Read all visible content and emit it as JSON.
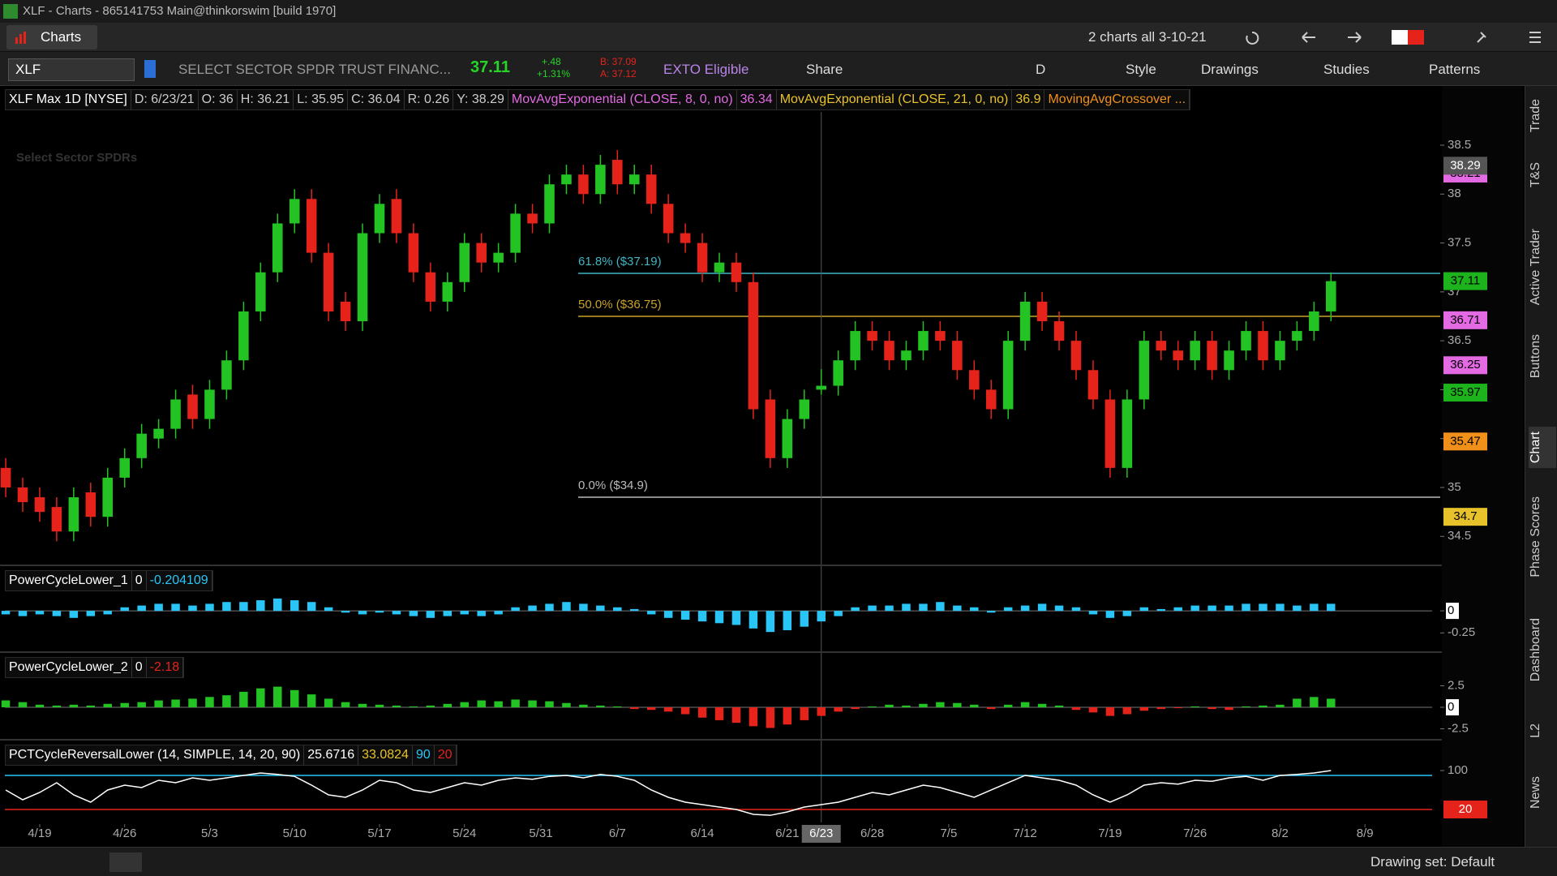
{
  "window": {
    "title": "XLF - Charts - 865141753 Main@thinkorswim [build 1970]"
  },
  "toolbar": {
    "tab": "Charts",
    "layout": "2 charts all 3-10-21",
    "symbol": "XLF",
    "description": "SELECT SECTOR SPDR TRUST FINANC...",
    "last": "37.11",
    "change": "+.48",
    "change_pct": "+1.31%",
    "bid": "B: 37.09",
    "ask": "A: 37.12",
    "badge": "EXTO Eligible",
    "share": "Share",
    "aggregation": "D",
    "style": "Style",
    "drawings": "Drawings",
    "studies": "Studies",
    "patterns": "Patterns"
  },
  "sidebar": {
    "tabs": [
      "Trade",
      "T&S",
      "Active Trader",
      "Buttons",
      "Chart",
      "Phase Scores",
      "Dashboard",
      "L2",
      "News"
    ],
    "active": "Chart"
  },
  "status": {
    "drawing_set": "Drawing set: Default"
  },
  "chart_data": [
    {
      "type": "candlestick",
      "header": [
        {
          "text": "XLF Max 1D [NYSE]",
          "color": "#ffffff"
        },
        {
          "text": "D: 6/23/21",
          "color": "#cccccc"
        },
        {
          "text": "O: 36",
          "color": "#cccccc"
        },
        {
          "text": "H: 36.21",
          "color": "#cccccc"
        },
        {
          "text": "L: 35.95",
          "color": "#cccccc"
        },
        {
          "text": "C: 36.04",
          "color": "#cccccc"
        },
        {
          "text": "R: 0.26",
          "color": "#cccccc"
        },
        {
          "text": "Y: 38.29",
          "color": "#cccccc"
        },
        {
          "text": "MovAvgExponential (CLOSE, 8, 0, no)",
          "color": "#e36ae3"
        },
        {
          "text": "36.34",
          "color": "#e36ae3"
        },
        {
          "text": "MovAvgExponential (CLOSE, 21, 0, no)",
          "color": "#e8c22a"
        },
        {
          "text": "36.9",
          "color": "#e8c22a"
        },
        {
          "text": "MovingAvgCrossover ...",
          "color": "#f0901a"
        }
      ],
      "watermark": "Select Sector SPDRs",
      "open": [
        35.2,
        35.0,
        34.9,
        34.8,
        34.55,
        34.95,
        34.7,
        35.1,
        35.3,
        35.5,
        35.6,
        35.95,
        35.7,
        36.0,
        36.3,
        36.8,
        37.2,
        37.7,
        37.95,
        37.4,
        36.9,
        36.7,
        37.6,
        37.95,
        37.6,
        37.2,
        36.9,
        37.1,
        37.5,
        37.3,
        37.4,
        37.8,
        37.7,
        38.1,
        38.2,
        38.0,
        38.35,
        38.1,
        38.2,
        37.9,
        37.6,
        37.5,
        37.2,
        37.3,
        37.1,
        35.9,
        35.3,
        35.7,
        36,
        36.04,
        36.3,
        36.6,
        36.5,
        36.3,
        36.4,
        36.6,
        36.5,
        36.2,
        36.0,
        35.8,
        36.5,
        36.9,
        36.7,
        36.5,
        36.2,
        35.9,
        35.2,
        35.9,
        36.5,
        36.4,
        36.3,
        36.5,
        36.2,
        36.4,
        36.6,
        36.3,
        36.5,
        36.6,
        36.8
      ],
      "high": [
        35.3,
        35.1,
        35.0,
        34.9,
        35.0,
        35.05,
        35.2,
        35.4,
        35.65,
        35.7,
        36.0,
        36.05,
        36.1,
        36.4,
        36.9,
        37.3,
        37.8,
        38.05,
        38.05,
        37.5,
        37.0,
        37.7,
        38.0,
        38.05,
        37.7,
        37.3,
        37.2,
        37.6,
        37.6,
        37.5,
        37.9,
        37.9,
        38.2,
        38.3,
        38.3,
        38.4,
        38.45,
        38.3,
        38.3,
        38.0,
        37.7,
        37.6,
        37.4,
        37.4,
        37.2,
        36.0,
        35.8,
        36.0,
        36.21,
        36.4,
        36.7,
        36.7,
        36.6,
        36.5,
        36.7,
        36.7,
        36.6,
        36.3,
        36.1,
        36.6,
        37.0,
        37.0,
        36.8,
        36.6,
        36.3,
        36.0,
        36.0,
        36.6,
        36.6,
        36.5,
        36.6,
        36.6,
        36.5,
        36.7,
        36.7,
        36.6,
        36.7,
        36.9,
        37.2
      ],
      "low": [
        34.9,
        34.75,
        34.65,
        34.45,
        34.45,
        34.6,
        34.6,
        35.0,
        35.2,
        35.4,
        35.5,
        35.6,
        35.6,
        35.9,
        36.2,
        36.7,
        37.1,
        37.6,
        37.3,
        36.7,
        36.6,
        36.6,
        37.5,
        37.5,
        37.1,
        36.8,
        36.8,
        37.0,
        37.2,
        37.2,
        37.3,
        37.6,
        37.6,
        38.0,
        37.9,
        37.9,
        38.0,
        38.0,
        37.8,
        37.5,
        37.4,
        37.1,
        37.1,
        37.0,
        35.7,
        35.2,
        35.2,
        35.6,
        35.95,
        35.94,
        36.2,
        36.4,
        36.2,
        36.2,
        36.3,
        36.4,
        36.1,
        35.9,
        35.7,
        35.7,
        36.4,
        36.6,
        36.4,
        36.1,
        35.8,
        35.1,
        35.1,
        35.8,
        36.3,
        36.2,
        36.2,
        36.1,
        36.1,
        36.3,
        36.2,
        36.2,
        36.4,
        36.5,
        36.7
      ],
      "close": [
        35.0,
        34.85,
        34.75,
        34.55,
        34.9,
        34.7,
        35.1,
        35.3,
        35.55,
        35.6,
        35.9,
        35.7,
        36.0,
        36.3,
        36.8,
        37.2,
        37.7,
        37.95,
        37.4,
        36.8,
        36.7,
        37.6,
        37.9,
        37.6,
        37.2,
        36.9,
        37.1,
        37.5,
        37.3,
        37.4,
        37.8,
        37.7,
        38.1,
        38.2,
        38.0,
        38.3,
        38.1,
        38.2,
        37.9,
        37.6,
        37.5,
        37.2,
        37.3,
        37.1,
        35.8,
        35.3,
        35.7,
        35.9,
        36.04,
        36.3,
        36.6,
        36.5,
        36.3,
        36.4,
        36.6,
        36.5,
        36.2,
        36.0,
        35.8,
        36.5,
        36.9,
        36.7,
        36.5,
        36.2,
        35.9,
        35.2,
        35.9,
        36.5,
        36.4,
        36.3,
        36.5,
        36.2,
        36.4,
        36.6,
        36.3,
        36.5,
        36.6,
        36.8,
        37.11
      ],
      "up_color": "#22c322",
      "down_color": "#e5231b",
      "xlim": [
        -0.05,
        84.43
      ],
      "xticks": [
        {
          "value": 2,
          "label": "4/19"
        },
        {
          "value": 7,
          "label": "4/26"
        },
        {
          "value": 12,
          "label": "5/3"
        },
        {
          "value": 17,
          "label": "5/10"
        },
        {
          "value": 22,
          "label": "5/17"
        },
        {
          "value": 27,
          "label": "5/24"
        },
        {
          "value": 31.5,
          "label": "5/31"
        },
        {
          "value": 36,
          "label": "6/7"
        },
        {
          "value": 41,
          "label": "6/14"
        },
        {
          "value": 46,
          "label": "6/21"
        },
        {
          "value": 51,
          "label": "6/28"
        },
        {
          "value": 55.5,
          "label": "7/5"
        },
        {
          "value": 60,
          "label": "7/12"
        },
        {
          "value": 65,
          "label": "7/19"
        },
        {
          "value": 70,
          "label": "7/26"
        },
        {
          "value": 75,
          "label": "8/2"
        },
        {
          "value": 80,
          "label": "8/9"
        }
      ],
      "cursor": {
        "value": 48,
        "label": "6/23"
      },
      "ylim": [
        34.27,
        38.84
      ],
      "yticks": [
        34.5,
        35,
        35.5,
        36,
        36.5,
        37,
        37.5,
        38,
        38.5
      ],
      "fib_levels": [
        {
          "label": "61.8% ($37.19)",
          "value": 37.19,
          "color": "#3fb6c4"
        },
        {
          "label": "50.0% ($36.75)",
          "value": 36.75,
          "color": "#c9a227"
        },
        {
          "label": "0.0% ($34.9)",
          "value": 34.9,
          "color": "#bbbbbb"
        }
      ],
      "price_labels": [
        {
          "value": 38.21,
          "color": "#e36ae3"
        },
        {
          "value": 38.29,
          "color": "#555555",
          "text_color": "#ffffff"
        },
        {
          "value": 37.11,
          "color": "#1db31d"
        },
        {
          "value": 36.71,
          "color": "#e36ae3"
        },
        {
          "value": 36.25,
          "color": "#e36ae3"
        },
        {
          "value": 35.97,
          "color": "#1db31d"
        },
        {
          "value": 35.47,
          "color": "#f0901a"
        },
        {
          "value": 34.7,
          "color": "#e8c22a"
        }
      ]
    },
    {
      "type": "histogram",
      "header": [
        {
          "text": "PowerCycleLower_1",
          "color": "#ffffff"
        },
        {
          "text": "0",
          "color": "#ffffff"
        },
        {
          "text": "-0.204109",
          "color": "#29c5f6"
        }
      ],
      "values": [
        -0.04,
        -0.06,
        -0.04,
        -0.06,
        -0.08,
        -0.06,
        -0.04,
        0.04,
        0.06,
        0.08,
        0.08,
        0.06,
        0.08,
        0.1,
        0.1,
        0.12,
        0.14,
        0.12,
        0.1,
        0.04,
        -0.02,
        -0.04,
        -0.02,
        -0.04,
        -0.06,
        -0.08,
        -0.06,
        -0.04,
        -0.06,
        -0.04,
        0.04,
        0.06,
        0.08,
        0.1,
        0.08,
        0.06,
        0.04,
        0.02,
        -0.04,
        -0.08,
        -0.1,
        -0.12,
        -0.14,
        -0.16,
        -0.2,
        -0.24,
        -0.22,
        -0.18,
        -0.12,
        -0.06,
        0.04,
        0.06,
        0.06,
        0.08,
        0.08,
        0.1,
        0.06,
        0.04,
        -0.02,
        0.04,
        0.06,
        0.08,
        0.06,
        0.04,
        -0.04,
        -0.08,
        -0.06,
        0.04,
        0.02,
        0.04,
        0.06,
        0.06,
        0.06,
        0.08,
        0.08,
        0.08,
        0.06,
        0.08,
        0.08
      ],
      "up_color": "#29c5f6",
      "down_color": "#29c5f6",
      "ylim": [
        -0.45,
        0.47
      ],
      "yticks": [
        0,
        -0.25
      ],
      "zero_line": true
    },
    {
      "type": "histogram",
      "header": [
        {
          "text": "PowerCycleLower_2",
          "color": "#ffffff"
        },
        {
          "text": "0",
          "color": "#ffffff"
        },
        {
          "text": "-2.18",
          "color": "#e5231b"
        }
      ],
      "values": [
        0.8,
        0.6,
        0.3,
        0.2,
        0.3,
        0.2,
        0.4,
        0.5,
        0.6,
        0.8,
        0.9,
        1.0,
        1.2,
        1.4,
        1.8,
        2.2,
        2.4,
        2.0,
        1.5,
        1.0,
        0.6,
        0.4,
        0.3,
        0.2,
        0.1,
        0.2,
        0.4,
        0.6,
        0.8,
        0.7,
        0.9,
        0.8,
        0.7,
        0.5,
        0.3,
        0.2,
        0.1,
        -0.2,
        -0.3,
        -0.5,
        -0.8,
        -1.2,
        -1.5,
        -1.8,
        -2.2,
        -2.4,
        -2.0,
        -1.5,
        -1.0,
        -0.5,
        -0.2,
        0.1,
        0.3,
        0.2,
        0.4,
        0.6,
        0.5,
        0.3,
        -0.2,
        0.3,
        0.6,
        0.4,
        0.2,
        -0.3,
        -0.6,
        -1.0,
        -0.8,
        -0.4,
        -0.2,
        -0.1,
        0.1,
        -0.2,
        -0.3,
        0.1,
        0.2,
        0.3,
        1.0,
        1.2,
        1.0
      ],
      "up_color": "#22c322",
      "down_color": "#e5231b",
      "ylim": [
        -3.77,
        5.94
      ],
      "yticks": [
        2.5,
        0,
        -2.5
      ],
      "zero_line": true
    },
    {
      "type": "line",
      "header": [
        {
          "text": "PCTCycleReversalLower (14, SIMPLE, 14, 20, 90)",
          "color": "#ffffff"
        },
        {
          "text": "25.6716",
          "color": "#ffffff"
        },
        {
          "text": "33.0824",
          "color": "#e8c22a"
        },
        {
          "text": "90",
          "color": "#29c5f6"
        },
        {
          "text": "20",
          "color": "#e5231b"
        }
      ],
      "values": [
        60,
        40,
        55,
        75,
        50,
        35,
        60,
        70,
        65,
        80,
        75,
        85,
        80,
        85,
        90,
        95,
        92,
        88,
        70,
        50,
        45,
        60,
        80,
        75,
        60,
        55,
        65,
        75,
        70,
        80,
        85,
        82,
        88,
        90,
        85,
        92,
        88,
        80,
        60,
        45,
        35,
        30,
        25,
        20,
        10,
        8,
        15,
        25,
        30,
        35,
        45,
        55,
        50,
        60,
        70,
        65,
        55,
        45,
        60,
        75,
        90,
        85,
        80,
        70,
        50,
        35,
        50,
        70,
        75,
        72,
        80,
        78,
        85,
        88,
        80,
        90,
        92,
        95,
        100
      ],
      "color": "#ffffff",
      "ylim": [
        -6.7,
        155
      ],
      "yticks": [
        100
      ],
      "levels": [
        {
          "value": 90,
          "color": "#29c5f6"
        },
        {
          "value": 20,
          "color": "#e5231b"
        }
      ],
      "price_labels": [
        {
          "value": 20,
          "color": "#e5231b",
          "text_color": "#ffffff"
        }
      ]
    }
  ]
}
